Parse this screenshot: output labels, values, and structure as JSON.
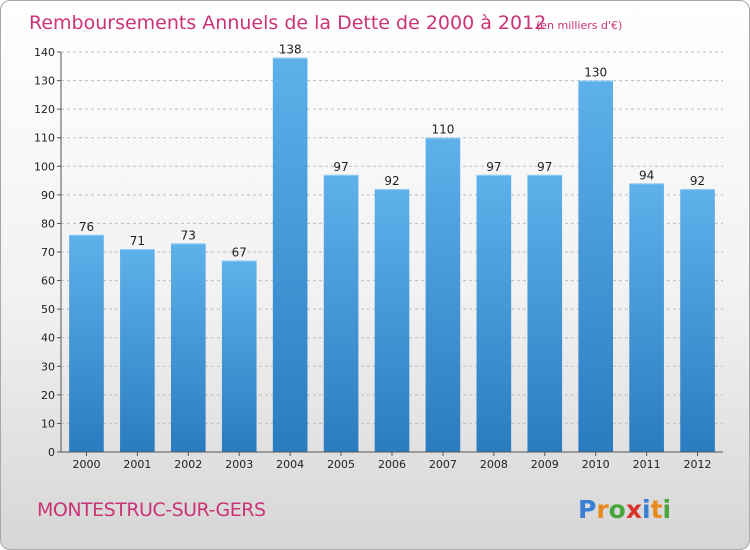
{
  "header": {
    "title": "Remboursements Annuels de la Dette de 2000 à 2012",
    "unit": "(en milliers d'€)"
  },
  "footer": {
    "commune": "MONTESTRUC-SUR-GERS"
  },
  "logo": {
    "letters": [
      "P",
      "r",
      "o",
      "x",
      "i",
      "t",
      "i"
    ],
    "colors": [
      "#3a7fd5",
      "#e98a1e",
      "#4aa63c",
      "#d9362b",
      "#3a7fd5",
      "#e98a1e",
      "#4aa63c"
    ]
  },
  "colors": {
    "bar_light": "#5eb1ea",
    "bar_dark": "#2a7cc0",
    "grid": "#bdbdbd",
    "title": "#cc3377"
  },
  "chart_data": {
    "type": "bar",
    "categories": [
      "2000",
      "2001",
      "2002",
      "2003",
      "2004",
      "2005",
      "2006",
      "2007",
      "2008",
      "2009",
      "2010",
      "2011",
      "2012"
    ],
    "values": [
      76,
      71,
      73,
      67,
      138,
      97,
      92,
      110,
      97,
      97,
      130,
      94,
      92
    ],
    "title": "Remboursements Annuels de la Dette de 2000 à 2012",
    "ylim": [
      0,
      140
    ],
    "yticks": [
      0,
      10,
      20,
      30,
      40,
      50,
      60,
      70,
      80,
      90,
      100,
      110,
      120,
      130,
      140
    ],
    "grid": true,
    "data_labels": true
  }
}
